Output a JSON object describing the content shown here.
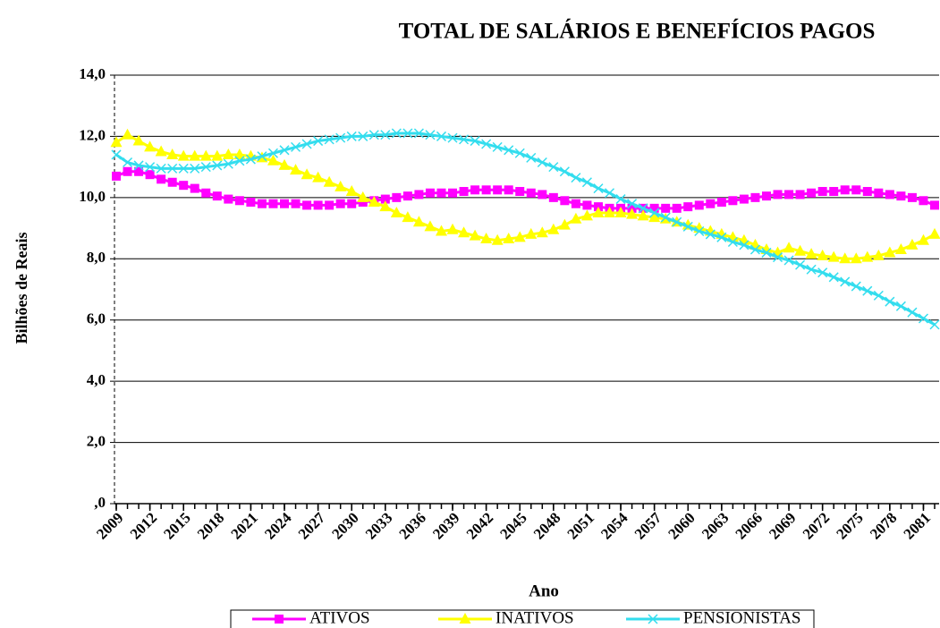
{
  "chart_data": {
    "type": "line",
    "title": "TOTAL DE SALÁRIOS E BENEFÍCIOS PAGOS",
    "x_label": "Ano",
    "y_label": "Bilhões de Reais",
    "x": [
      2009,
      2010,
      2011,
      2012,
      2013,
      2014,
      2015,
      2016,
      2017,
      2018,
      2019,
      2020,
      2021,
      2022,
      2023,
      2024,
      2025,
      2026,
      2027,
      2028,
      2029,
      2030,
      2031,
      2032,
      2033,
      2034,
      2035,
      2036,
      2037,
      2038,
      2039,
      2040,
      2041,
      2042,
      2043,
      2044,
      2045,
      2046,
      2047,
      2048,
      2049,
      2050,
      2051,
      2052,
      2053,
      2054,
      2055,
      2056,
      2057,
      2058,
      2059,
      2060,
      2061,
      2062,
      2063,
      2064,
      2065,
      2066,
      2067,
      2068,
      2069,
      2070,
      2071,
      2072,
      2073,
      2074,
      2075,
      2076,
      2077,
      2078,
      2079,
      2080,
      2081,
      2082
    ],
    "xlim": [
      2009,
      2082
    ],
    "xticks": [
      2009,
      2012,
      2015,
      2018,
      2021,
      2024,
      2027,
      2030,
      2033,
      2036,
      2039,
      2042,
      2045,
      2048,
      2051,
      2054,
      2057,
      2060,
      2063,
      2066,
      2069,
      2072,
      2075,
      2078,
      2081
    ],
    "ylim": [
      0,
      14
    ],
    "yticks": [
      {
        "value": 0,
        "label": ",0"
      },
      {
        "value": 2,
        "label": "2,0"
      },
      {
        "value": 4,
        "label": "4,0"
      },
      {
        "value": 6,
        "label": "6,0"
      },
      {
        "value": 8,
        "label": "8,0"
      },
      {
        "value": 10,
        "label": "10,0"
      },
      {
        "value": 12,
        "label": "12,0"
      },
      {
        "value": 14,
        "label": "14,0"
      }
    ],
    "grid": true,
    "legend": "bottom",
    "series": [
      {
        "name": "ATIVOS",
        "color": "#ff00ff",
        "marker": "square",
        "values": [
          10.7,
          10.85,
          10.85,
          10.75,
          10.6,
          10.5,
          10.4,
          10.3,
          10.15,
          10.05,
          9.95,
          9.9,
          9.85,
          9.8,
          9.8,
          9.8,
          9.8,
          9.75,
          9.75,
          9.75,
          9.8,
          9.8,
          9.85,
          9.9,
          9.95,
          10.0,
          10.05,
          10.1,
          10.15,
          10.15,
          10.15,
          10.2,
          10.25,
          10.25,
          10.25,
          10.25,
          10.2,
          10.15,
          10.1,
          10.0,
          9.9,
          9.8,
          9.75,
          9.7,
          9.65,
          9.65,
          9.65,
          9.65,
          9.65,
          9.65,
          9.65,
          9.7,
          9.75,
          9.8,
          9.85,
          9.9,
          9.95,
          10.0,
          10.05,
          10.1,
          10.1,
          10.1,
          10.15,
          10.2,
          10.2,
          10.25,
          10.25,
          10.2,
          10.15,
          10.1,
          10.05,
          10.0,
          9.9,
          9.75
        ]
      },
      {
        "name": "INATIVOS",
        "color": "#ffff00",
        "marker": "triangle",
        "values": [
          11.8,
          12.05,
          11.85,
          11.65,
          11.5,
          11.4,
          11.35,
          11.35,
          11.35,
          11.35,
          11.4,
          11.4,
          11.35,
          11.3,
          11.2,
          11.05,
          10.9,
          10.75,
          10.65,
          10.5,
          10.35,
          10.2,
          10.0,
          9.85,
          9.7,
          9.5,
          9.35,
          9.2,
          9.05,
          8.9,
          8.95,
          8.85,
          8.75,
          8.65,
          8.6,
          8.65,
          8.7,
          8.8,
          8.85,
          8.95,
          9.1,
          9.3,
          9.4,
          9.5,
          9.5,
          9.5,
          9.45,
          9.4,
          9.35,
          9.3,
          9.2,
          9.1,
          9.0,
          8.9,
          8.8,
          8.7,
          8.6,
          8.45,
          8.3,
          8.2,
          8.35,
          8.25,
          8.15,
          8.1,
          8.05,
          8.0,
          8.0,
          8.05,
          8.1,
          8.2,
          8.3,
          8.45,
          8.6,
          8.8
        ]
      },
      {
        "name": "PENSIONISTAS",
        "color": "#33ddee",
        "marker": "x",
        "values": [
          11.4,
          11.15,
          11.05,
          11.0,
          10.95,
          10.95,
          10.95,
          10.95,
          11.0,
          11.05,
          11.1,
          11.2,
          11.25,
          11.35,
          11.45,
          11.55,
          11.65,
          11.75,
          11.85,
          11.9,
          11.95,
          12.0,
          12.0,
          12.05,
          12.05,
          12.1,
          12.1,
          12.1,
          12.05,
          12.0,
          11.95,
          11.9,
          11.85,
          11.75,
          11.65,
          11.55,
          11.45,
          11.3,
          11.15,
          11.0,
          10.85,
          10.65,
          10.5,
          10.3,
          10.15,
          9.95,
          9.8,
          9.65,
          9.5,
          9.35,
          9.2,
          9.05,
          8.9,
          8.8,
          8.7,
          8.55,
          8.45,
          8.3,
          8.2,
          8.05,
          7.95,
          7.8,
          7.65,
          7.55,
          7.4,
          7.25,
          7.1,
          6.95,
          6.8,
          6.6,
          6.45,
          6.25,
          6.05,
          5.85
        ]
      }
    ]
  }
}
